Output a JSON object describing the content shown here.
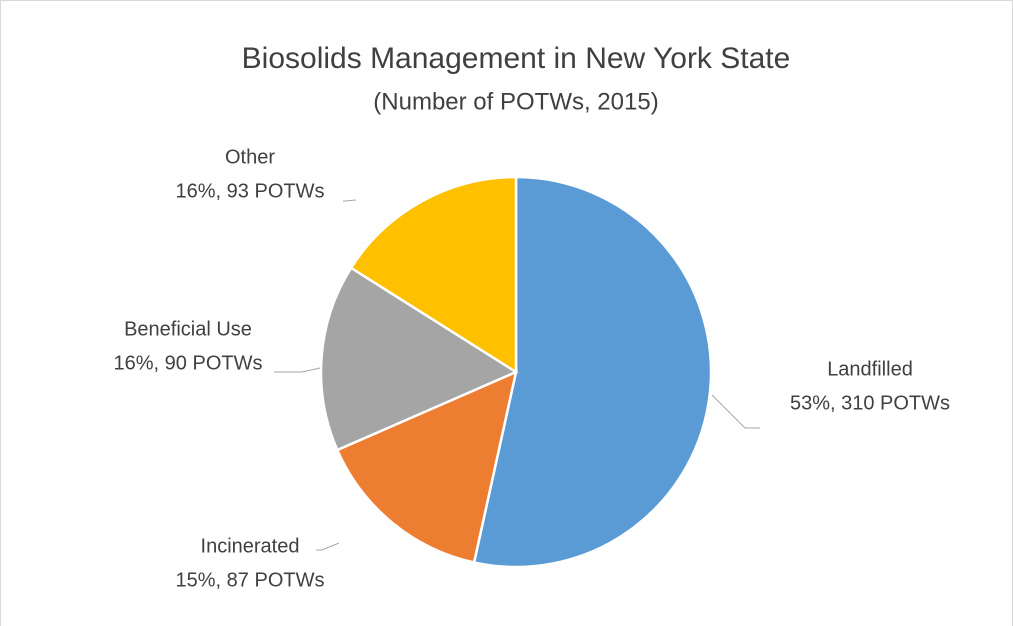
{
  "chart_data": {
    "type": "pie",
    "title": "Biosolids Management in New York State",
    "subtitle": "(Number of POTWs, 2015)",
    "categories": [
      "Landfilled",
      "Incinerated",
      "Beneficial Use",
      "Other"
    ],
    "values": [
      310,
      87,
      90,
      93
    ],
    "value_labels": [
      "53%, 310 POTWs",
      "15%, 87 POTWs",
      "16%, 90 POTWs",
      "16%, 93 POTWs"
    ],
    "colors": [
      "#5b9bd5",
      "#ed7d31",
      "#a5a5a5",
      "#ffc000"
    ]
  }
}
